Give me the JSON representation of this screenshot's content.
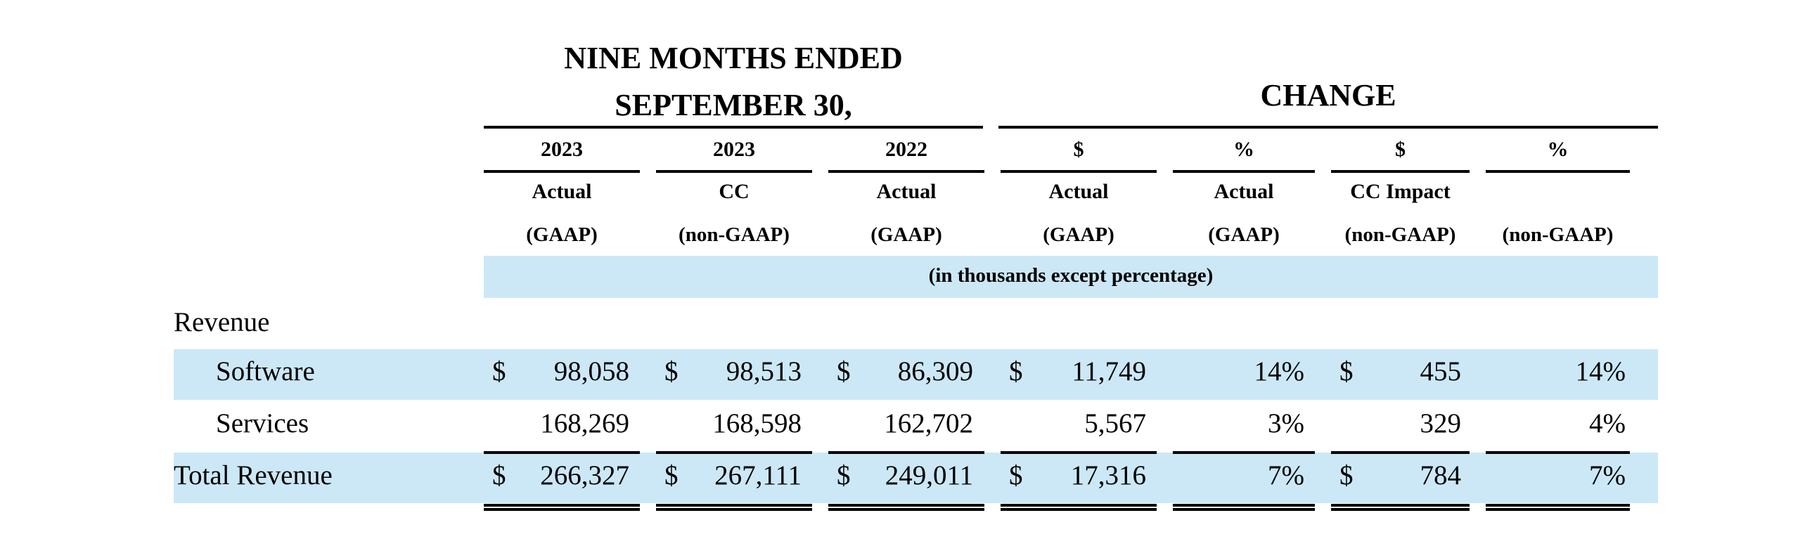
{
  "header": {
    "period_line1": "NINE MONTHS ENDED",
    "period_line2": "SEPTEMBER 30,",
    "change": "CHANGE",
    "units_note": "(in thousands except percentage)"
  },
  "columns": [
    {
      "year": "2023",
      "type": "Actual",
      "basis": "(GAAP)"
    },
    {
      "year": "2023",
      "type": "CC",
      "basis": "(non-GAAP)"
    },
    {
      "year": "2022",
      "type": "Actual",
      "basis": "(GAAP)"
    },
    {
      "year": "$",
      "type": "Actual",
      "basis": "(GAAP)"
    },
    {
      "year": "%",
      "type": "Actual",
      "basis": "(GAAP)"
    },
    {
      "year": "$",
      "type": "CC Impact",
      "basis": "(non-GAAP)"
    },
    {
      "year": "%",
      "type": "",
      "basis": "(non-GAAP)"
    }
  ],
  "section_label": "Revenue",
  "rows": [
    {
      "label": "Software",
      "cells": [
        {
          "sym": "$",
          "val": "98,058"
        },
        {
          "sym": "$",
          "val": "98,513"
        },
        {
          "sym": "$",
          "val": "86,309"
        },
        {
          "sym": "$",
          "val": "11,749"
        },
        {
          "sym": "",
          "val": "14%"
        },
        {
          "sym": "$",
          "val": "455"
        },
        {
          "sym": "",
          "val": "14%"
        }
      ]
    },
    {
      "label": "Services",
      "cells": [
        {
          "sym": "",
          "val": "168,269"
        },
        {
          "sym": "",
          "val": "168,598"
        },
        {
          "sym": "",
          "val": "162,702"
        },
        {
          "sym": "",
          "val": "5,567"
        },
        {
          "sym": "",
          "val": "3%"
        },
        {
          "sym": "",
          "val": "329"
        },
        {
          "sym": "",
          "val": "4%"
        }
      ]
    },
    {
      "label": "Total Revenue",
      "cells": [
        {
          "sym": "$",
          "val": "266,327"
        },
        {
          "sym": "$",
          "val": "267,111"
        },
        {
          "sym": "$",
          "val": "249,011"
        },
        {
          "sym": "$",
          "val": "17,316"
        },
        {
          "sym": "",
          "val": "7%"
        },
        {
          "sym": "$",
          "val": "784"
        },
        {
          "sym": "",
          "val": "7%"
        }
      ]
    }
  ]
}
